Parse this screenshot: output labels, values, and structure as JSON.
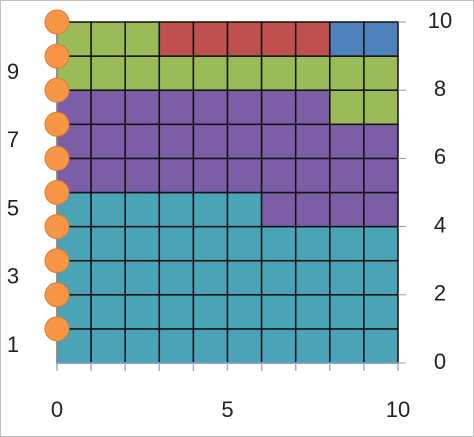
{
  "chart_data": {
    "type": "waffle",
    "grid_size": [
      10,
      10
    ],
    "series": [
      {
        "color": "#4ba3b6",
        "value": 46
      },
      {
        "color": "#7b5ea6",
        "value": 32
      },
      {
        "color": "#9bbb59",
        "value": 15
      },
      {
        "color": "#c0504d",
        "value": 5
      },
      {
        "color": "#4f81bd",
        "value": 2
      }
    ],
    "points": {
      "type": "scatter",
      "color": "#f79646",
      "x": [
        0,
        0,
        0,
        0,
        0,
        0,
        0,
        0,
        0,
        0
      ],
      "y": [
        1,
        2,
        3,
        4,
        5,
        6,
        7,
        8,
        9,
        10
      ]
    },
    "xlim": [
      0,
      10
    ],
    "xticks": [
      0,
      5,
      10
    ],
    "xminor_ticks": [
      0,
      1,
      2,
      3,
      4,
      5,
      6,
      7,
      8,
      9,
      10
    ],
    "ylim": [
      0,
      10
    ],
    "yticks": [
      0,
      2,
      4,
      6,
      8,
      10
    ],
    "y2lim": [
      0.5,
      10.5
    ],
    "y2ticks": [
      1,
      3,
      5,
      7,
      9
    ]
  }
}
